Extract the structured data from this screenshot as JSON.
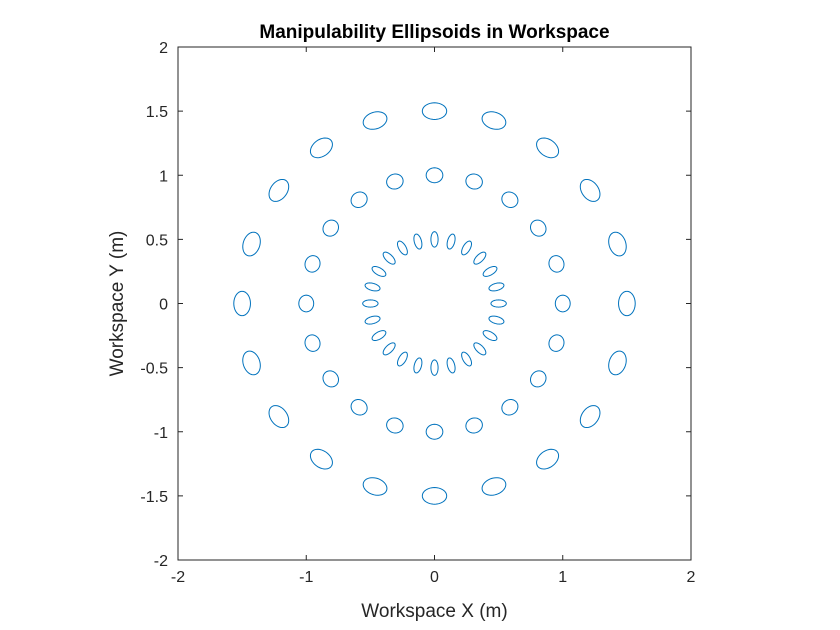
{
  "chart_data": {
    "type": "scatter",
    "title": "Manipulability Ellipsoids in Workspace",
    "xlabel": "Workspace X (m)",
    "ylabel": "Workspace Y (m)",
    "xlim": [
      -2,
      2
    ],
    "ylim": [
      -2,
      2
    ],
    "xticks": [
      -2,
      -1,
      0,
      1,
      2
    ],
    "yticks": [
      -2,
      -1.5,
      -1,
      -0.5,
      0,
      0.5,
      1,
      1.5,
      2
    ],
    "xtick_labels": [
      "-2",
      "-1",
      "0",
      "1",
      "2"
    ],
    "ytick_labels": [
      "-2",
      "-1.5",
      "-1",
      "-0.5",
      "0",
      "0.5",
      "1",
      "1.5",
      "2"
    ],
    "grid": false,
    "legend": "none",
    "series_color": "#0072BD",
    "axis_color": "#262626",
    "rings": [
      {
        "radius": 0.5,
        "count": 24,
        "tangential_semi_axis": 0.028,
        "radial_semi_axis": 0.06
      },
      {
        "radius": 1.0,
        "count": 20,
        "tangential_semi_axis": 0.065,
        "radial_semi_axis": 0.058
      },
      {
        "radius": 1.5,
        "count": 20,
        "tangential_semi_axis": 0.095,
        "radial_semi_axis": 0.065
      }
    ]
  }
}
